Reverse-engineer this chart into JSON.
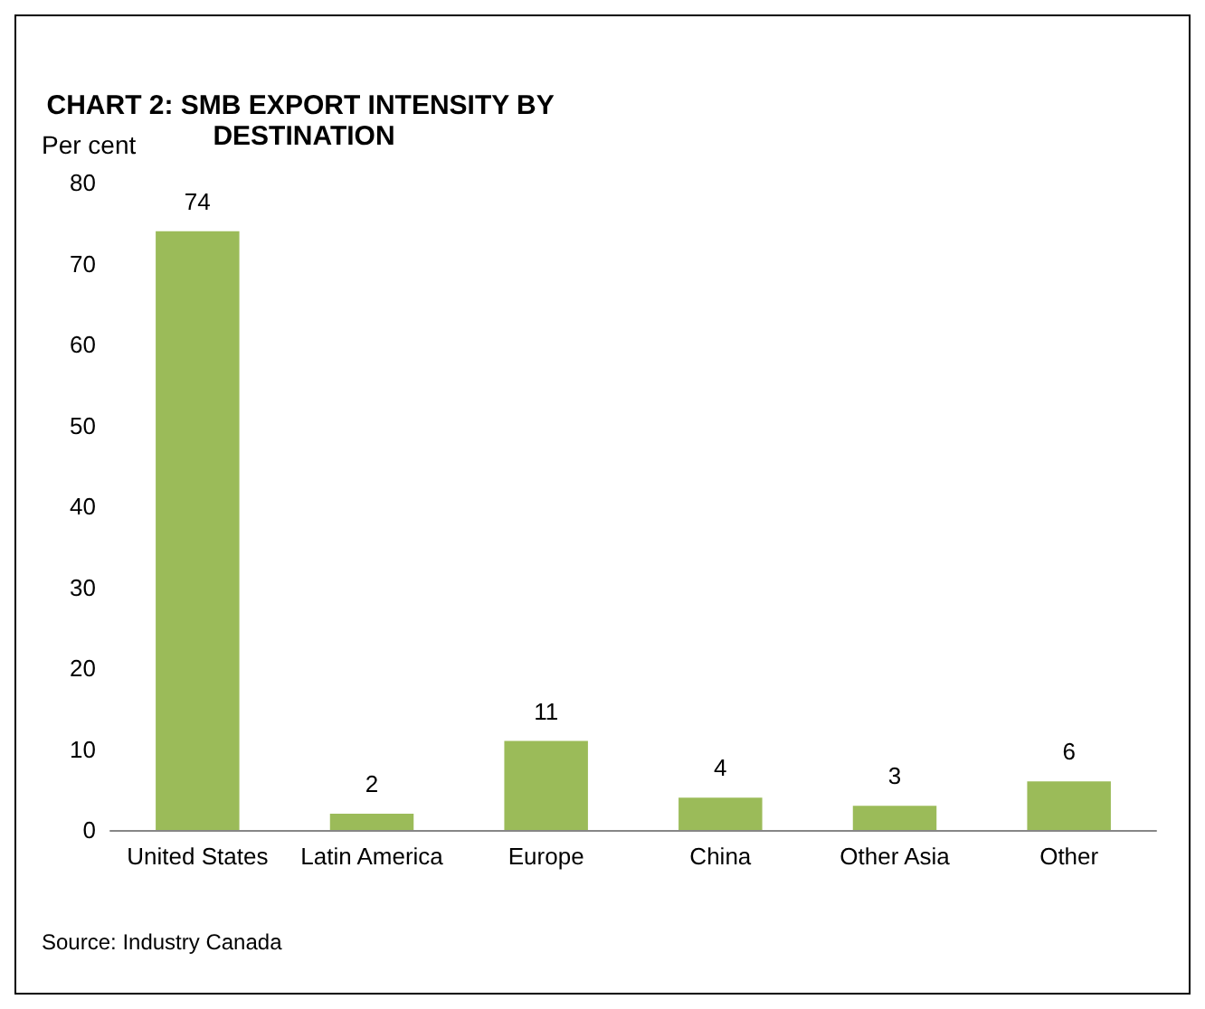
{
  "chart_data": {
    "type": "bar",
    "title": "CHART 2: SMB EXPORT INTENSITY BY DESTINATION",
    "ylabel": "Per cent",
    "categories": [
      "United States",
      "Latin America",
      "Europe",
      "China",
      "Other Asia",
      "Other"
    ],
    "values": [
      74,
      2,
      11,
      4,
      3,
      6
    ],
    "color": "#9bbb59",
    "ylim": [
      0,
      80
    ],
    "yticks": [
      0,
      10,
      20,
      30,
      40,
      50,
      60,
      70,
      80
    ],
    "grid": false,
    "data_labels": true,
    "annotations": [
      "Source: Industry Canada"
    ]
  }
}
